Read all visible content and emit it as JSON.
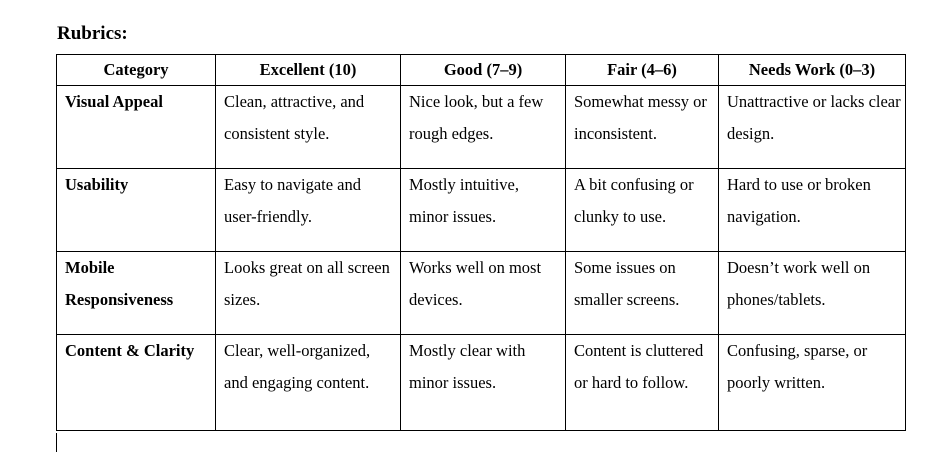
{
  "document": {
    "title": "Rubrics:"
  },
  "table": {
    "headers": [
      "Category",
      "Excellent (10)",
      "Good (7–9)",
      "Fair (4–6)",
      "Needs Work (0–3)"
    ],
    "rows": [
      {
        "category": "Visual Appeal",
        "cells": [
          "Clean, attractive, and consistent style.",
          "Nice look, but a few rough edges.",
          "Somewhat messy or inconsistent.",
          "Unattractive or lacks clear design."
        ]
      },
      {
        "category": "Usability",
        "cells": [
          "Easy to navigate and user-friendly.",
          "Mostly intuitive, minor issues.",
          "A bit confusing or clunky to use.",
          "Hard to use or broken navigation."
        ]
      },
      {
        "category": "Mobile Responsiveness",
        "cells": [
          "Looks great on all screen sizes.",
          "Works well on most devices.",
          "Some issues on smaller screens.",
          "Doesn’t work well on phones/tablets."
        ]
      },
      {
        "category": "Content & Clarity",
        "cells": [
          "Clear, well-organized, and engaging content.",
          "Mostly clear with minor issues.",
          "Content is cluttered or hard to follow.",
          "Confusing, sparse, or poorly written."
        ]
      }
    ]
  }
}
